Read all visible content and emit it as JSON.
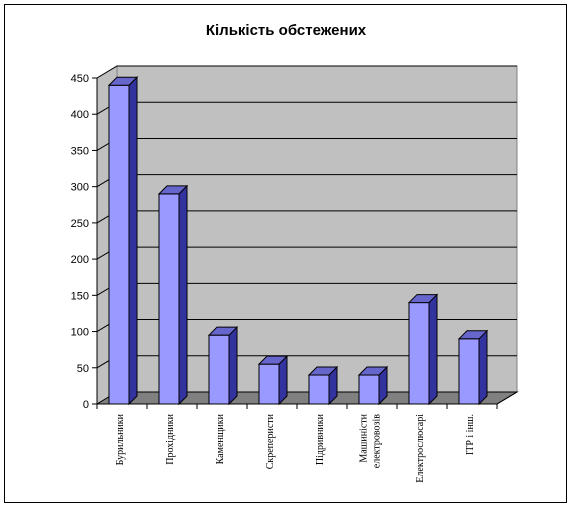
{
  "chart_data": {
    "type": "bar",
    "title": "Кількість обстежених",
    "categories": [
      [
        "Бурильники"
      ],
      [
        "Прохідники"
      ],
      [
        "Каменщики"
      ],
      [
        "Скреперисти"
      ],
      [
        "Підривники"
      ],
      [
        "Машиністи",
        "електровозів"
      ],
      [
        "Електрослюсарі"
      ],
      [
        "ІТР і інш."
      ]
    ],
    "values": [
      440,
      290,
      95,
      55,
      40,
      40,
      140,
      90
    ],
    "ylim": [
      0,
      450
    ],
    "yticks": [
      0,
      50,
      100,
      150,
      200,
      250,
      300,
      350,
      400,
      450
    ],
    "grid": true,
    "legend": "none",
    "xlabel": "",
    "ylabel": ""
  },
  "colors": {
    "wall": "#c0c0c0",
    "floor": "#808080",
    "bar_front": "#9999ff",
    "bar_side": "#3333a0",
    "bar_top": "#6666cc",
    "gridline": "#000000"
  }
}
